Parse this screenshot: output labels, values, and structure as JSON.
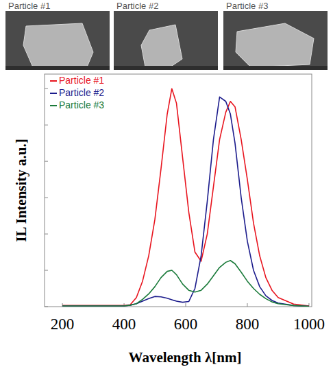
{
  "images": [
    {
      "label": "Particle #1"
    },
    {
      "label": "Particle #2"
    },
    {
      "label": "Particle #3"
    }
  ],
  "chart_data": {
    "type": "line",
    "x_label": "Wavelength λ[nm]",
    "y_label": "IL Intensity a.u.]",
    "x": [
      200,
      250,
      300,
      350,
      400,
      420,
      440,
      460,
      480,
      500,
      520,
      540,
      555,
      570,
      590,
      610,
      630,
      650,
      670,
      690,
      710,
      730,
      745,
      760,
      780,
      800,
      820,
      840,
      860,
      880,
      900,
      950,
      1000
    ],
    "series": [
      {
        "name": "Particle #1",
        "color": "#e8141e",
        "values": [
          0.03,
          0.03,
          0.03,
          0.03,
          0.03,
          0.05,
          0.25,
          0.7,
          1.4,
          2.4,
          3.8,
          5.3,
          6.0,
          5.6,
          4.1,
          2.6,
          1.5,
          1.25,
          2.0,
          3.3,
          4.6,
          5.35,
          5.65,
          5.5,
          4.6,
          3.5,
          2.3,
          1.4,
          0.8,
          0.45,
          0.25,
          0.07,
          0.02
        ]
      },
      {
        "name": "Particle #2",
        "color": "#1c1c8c",
        "values": [
          0.02,
          0.02,
          0.02,
          0.02,
          0.02,
          0.04,
          0.08,
          0.15,
          0.22,
          0.28,
          0.27,
          0.23,
          0.19,
          0.15,
          0.12,
          0.14,
          0.5,
          1.4,
          2.9,
          4.6,
          5.77,
          5.65,
          5.3,
          4.5,
          3.0,
          1.8,
          1.0,
          0.55,
          0.3,
          0.17,
          0.1,
          0.03,
          0.01
        ]
      },
      {
        "name": "Particle #3",
        "color": "#1a7a3a",
        "values": [
          0.02,
          0.02,
          0.02,
          0.02,
          0.02,
          0.04,
          0.08,
          0.2,
          0.35,
          0.55,
          0.8,
          0.97,
          1.0,
          0.88,
          0.62,
          0.45,
          0.4,
          0.45,
          0.62,
          0.85,
          1.08,
          1.22,
          1.27,
          1.18,
          0.95,
          0.7,
          0.5,
          0.34,
          0.22,
          0.13,
          0.08,
          0.03,
          0.01
        ]
      }
    ],
    "xlim": [
      142,
      1009
    ],
    "xticks": [
      200,
      400,
      600,
      800,
      1000
    ],
    "ylim": [
      0,
      6.4
    ],
    "yticks": [
      0,
      1,
      2,
      3,
      4,
      5,
      6
    ],
    "tick_labels": "x",
    "legend": "upper left",
    "grid": false
  }
}
